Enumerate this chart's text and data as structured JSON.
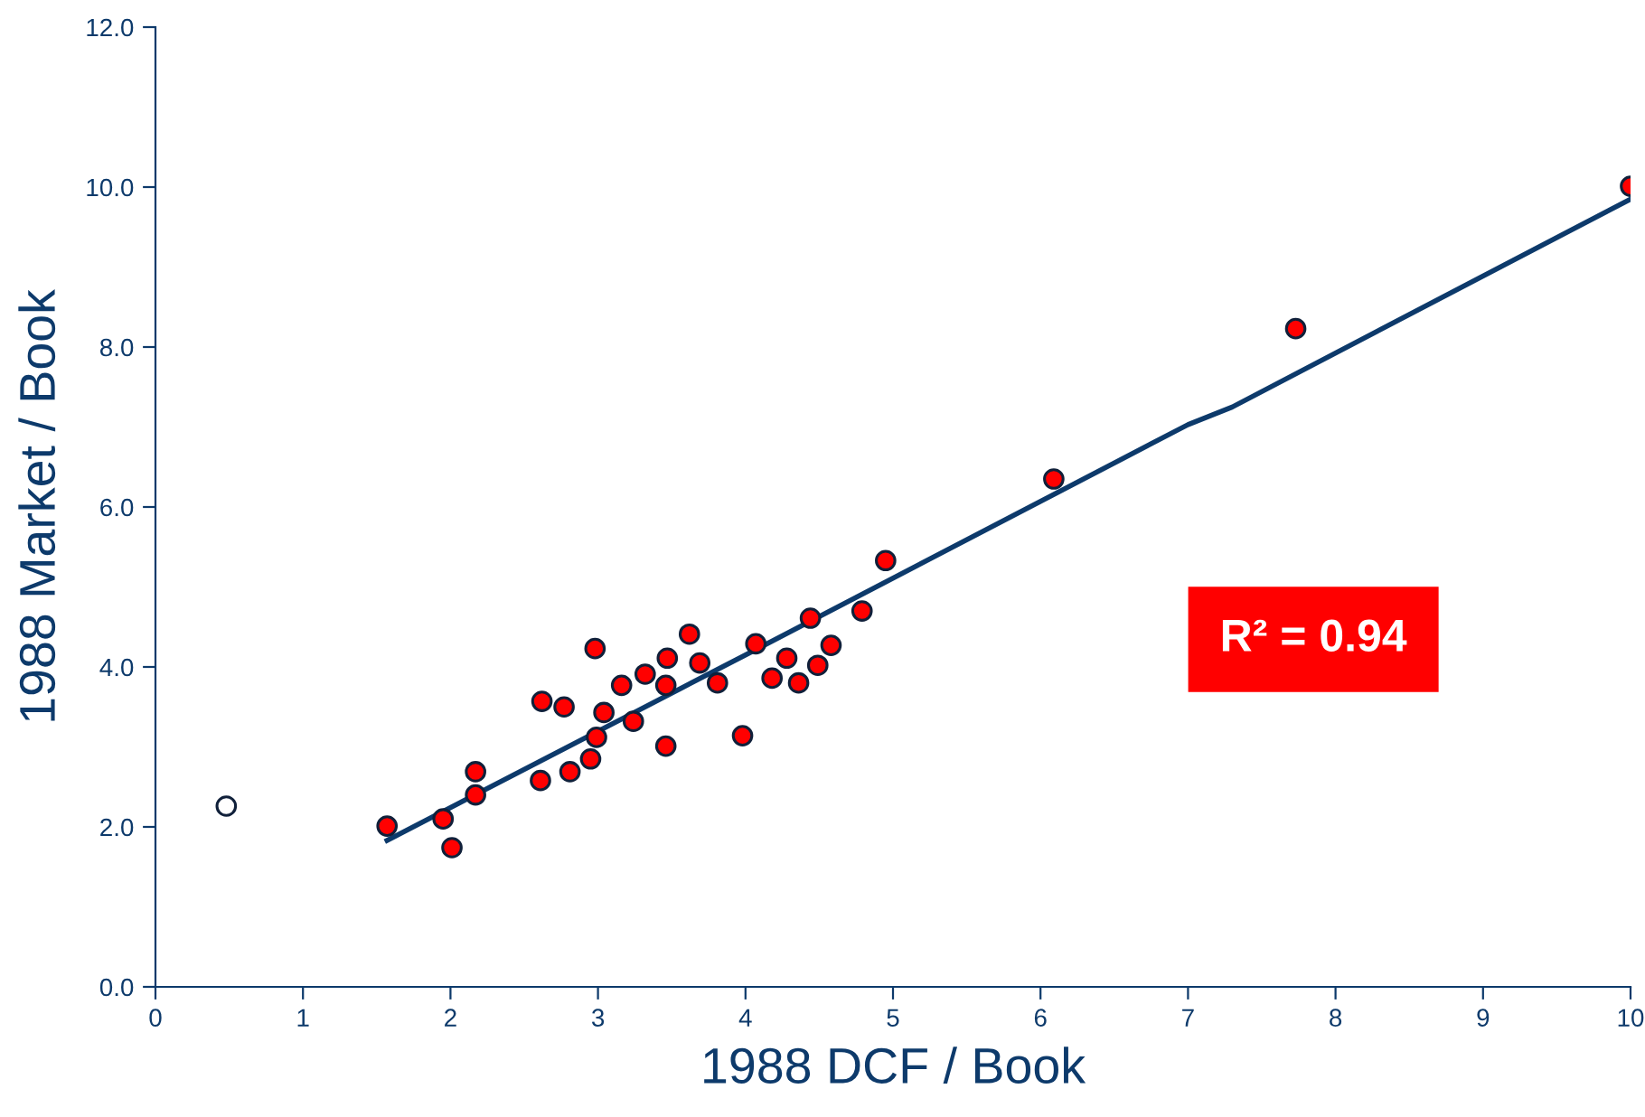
{
  "chart_data": {
    "type": "scatter",
    "xlabel": "1988 DCF / Book",
    "ylabel": "1988 Market / Book",
    "xlim": [
      0,
      10
    ],
    "ylim": [
      0,
      12
    ],
    "xticks": [
      0,
      1,
      2,
      3,
      4,
      5,
      6,
      7,
      8,
      9,
      10
    ],
    "yticks": [
      {
        "value": 0,
        "label": "0.0"
      },
      {
        "value": 2,
        "label": "2.0"
      },
      {
        "value": 4,
        "label": "4.0"
      },
      {
        "value": 6,
        "label": "6.0"
      },
      {
        "value": 8,
        "label": "8.0"
      },
      {
        "value": 10,
        "label": "10.0"
      },
      {
        "value": 12,
        "label": "12.0"
      }
    ],
    "grid": false,
    "legend": false,
    "marker": "circle",
    "annotations": [
      "R² = 0.94"
    ],
    "series": [
      {
        "color": "#ff0000",
        "x": [
          1.57,
          1.95,
          2.01,
          2.17,
          2.17,
          2.61,
          2.62,
          2.77,
          2.81,
          2.95,
          2.98,
          2.99,
          3.04,
          3.16,
          3.24,
          3.32,
          3.46,
          3.46,
          3.47,
          3.62,
          3.69,
          3.81,
          3.98,
          4.07,
          4.18,
          4.28,
          4.36,
          4.44,
          4.49,
          4.58,
          4.79,
          4.95,
          6.09,
          7.73,
          10.0
        ],
        "values": [
          2.01,
          2.1,
          1.74,
          2.4,
          2.69,
          2.58,
          3.57,
          3.5,
          2.69,
          2.85,
          4.23,
          3.12,
          3.43,
          3.77,
          3.32,
          3.91,
          3.77,
          3.01,
          4.11,
          4.41,
          4.05,
          3.8,
          3.14,
          4.29,
          3.86,
          4.11,
          3.8,
          4.61,
          4.02,
          4.27,
          4.7,
          5.33,
          6.35,
          8.23,
          10.01
        ]
      },
      {
        "color": "#ffffff",
        "x": [
          0.48
        ],
        "values": [
          2.26
        ]
      },
      {
        "type": "line",
        "color": "#0d3a6b",
        "marker": "none",
        "x": [
          1.57,
          4.0,
          7.0,
          7.3,
          10.0
        ],
        "values": [
          1.83,
          4.15,
          7.03,
          7.25,
          9.85
        ]
      }
    ]
  }
}
